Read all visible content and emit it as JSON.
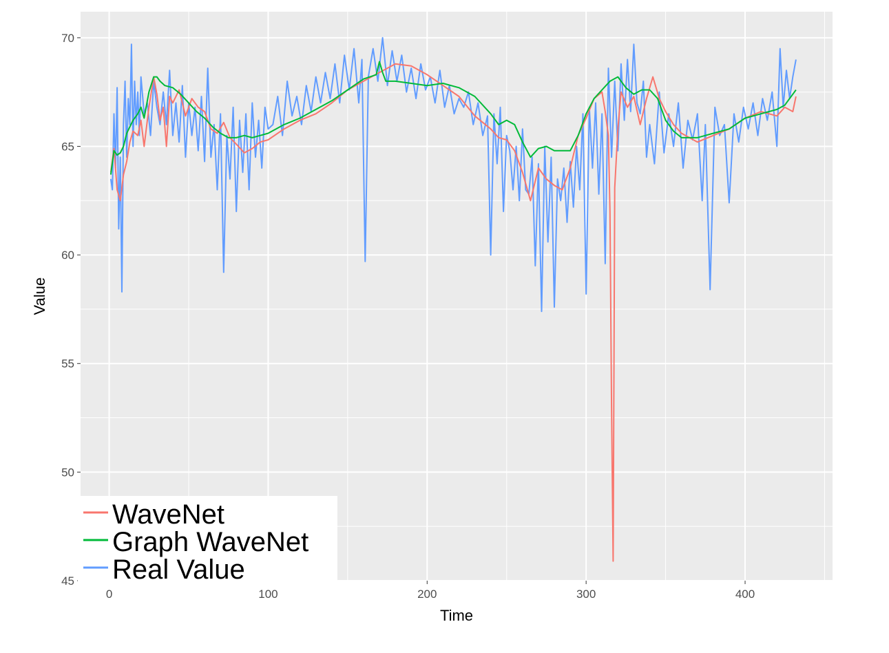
{
  "chart_data": {
    "type": "line",
    "xlabel": "Time",
    "ylabel": "Value",
    "xlim": [
      -18,
      455
    ],
    "ylim": [
      45,
      71.2
    ],
    "x_ticks": [
      0,
      100,
      200,
      300,
      400
    ],
    "y_ticks": [
      45,
      50,
      55,
      60,
      65,
      70
    ],
    "grid": true,
    "legend_position": "bottom-left",
    "colors": {
      "panel": "#ebebeb",
      "grid": "#ffffff",
      "wavenet": "#f8766d",
      "graph_wavenet": "#00ba38",
      "real_value": "#619cff"
    },
    "series": [
      {
        "name": "WaveNet",
        "color": "#f8766d",
        "x": [
          1,
          3,
          5,
          7,
          9,
          11,
          13,
          15,
          18,
          20,
          22,
          25,
          28,
          30,
          32,
          34,
          36,
          38,
          40,
          44,
          48,
          52,
          56,
          60,
          64,
          68,
          72,
          76,
          80,
          85,
          90,
          95,
          100,
          110,
          120,
          130,
          140,
          150,
          160,
          170,
          180,
          190,
          200,
          210,
          220,
          230,
          240,
          245,
          250,
          255,
          260,
          265,
          270,
          275,
          280,
          285,
          290,
          295,
          300,
          305,
          310,
          312,
          314,
          315,
          316,
          317,
          318,
          320,
          322,
          326,
          330,
          334,
          338,
          342,
          346,
          350,
          355,
          360,
          370,
          380,
          390,
          400,
          410,
          420,
          425,
          430,
          432
        ],
        "values": [
          63.8,
          64.9,
          63.0,
          62.5,
          63.7,
          64.3,
          65.2,
          65.7,
          65.5,
          66.2,
          65.0,
          66.8,
          68.2,
          67.4,
          66.2,
          66.8,
          65.0,
          67.3,
          67.0,
          67.6,
          66.4,
          67.2,
          66.8,
          66.6,
          65.8,
          65.6,
          66.1,
          65.4,
          65.1,
          64.7,
          64.9,
          65.2,
          65.3,
          65.8,
          66.2,
          66.5,
          67.0,
          67.6,
          68.0,
          68.4,
          68.8,
          68.7,
          68.3,
          67.8,
          67.3,
          66.4,
          65.8,
          65.4,
          65.3,
          64.8,
          63.8,
          62.5,
          64.0,
          63.5,
          63.2,
          63.0,
          64.0,
          65.5,
          66.3,
          67.2,
          67.5,
          66.6,
          65.5,
          62.0,
          53.0,
          45.9,
          63.1,
          65.8,
          67.5,
          66.8,
          67.3,
          66.0,
          67.2,
          68.2,
          67.2,
          66.6,
          66.0,
          65.6,
          65.2,
          65.5,
          65.8,
          66.3,
          66.6,
          66.4,
          66.8,
          66.6,
          67.3
        ]
      },
      {
        "name": "Graph WaveNet",
        "color": "#00ba38",
        "x": [
          1,
          3,
          5,
          7,
          9,
          11,
          13,
          15,
          18,
          20,
          22,
          25,
          28,
          30,
          32,
          35,
          40,
          45,
          50,
          55,
          60,
          65,
          70,
          75,
          80,
          85,
          90,
          95,
          100,
          110,
          120,
          130,
          140,
          150,
          160,
          168,
          170,
          172,
          174,
          180,
          190,
          200,
          210,
          220,
          230,
          240,
          245,
          250,
          255,
          260,
          265,
          270,
          275,
          280,
          285,
          290,
          295,
          300,
          305,
          310,
          315,
          320,
          325,
          330,
          335,
          340,
          345,
          350,
          355,
          360,
          370,
          380,
          390,
          400,
          410,
          420,
          425,
          430,
          432
        ],
        "values": [
          63.7,
          64.8,
          64.6,
          64.7,
          65.0,
          65.6,
          65.9,
          66.2,
          66.5,
          66.8,
          66.3,
          67.5,
          68.2,
          68.2,
          68.0,
          67.8,
          67.7,
          67.4,
          67.0,
          66.6,
          66.3,
          65.9,
          65.6,
          65.4,
          65.4,
          65.5,
          65.4,
          65.5,
          65.6,
          66.0,
          66.3,
          66.7,
          67.1,
          67.6,
          68.1,
          68.3,
          68.9,
          68.4,
          68.0,
          68.0,
          67.9,
          67.8,
          67.9,
          67.7,
          67.3,
          66.5,
          66.0,
          66.2,
          66.0,
          65.2,
          64.5,
          64.9,
          65.0,
          64.8,
          64.8,
          64.8,
          65.5,
          66.5,
          67.2,
          67.6,
          68.0,
          68.2,
          67.7,
          67.4,
          67.6,
          67.6,
          67.2,
          66.2,
          65.7,
          65.4,
          65.4,
          65.6,
          65.8,
          66.3,
          66.5,
          66.7,
          66.9,
          67.4,
          67.6
        ]
      },
      {
        "name": "Real Value",
        "color": "#619cff",
        "x": [
          1,
          2,
          3,
          4,
          5,
          6,
          7,
          8,
          9,
          10,
          11,
          12,
          13,
          14,
          15,
          16,
          17,
          18,
          19,
          20,
          22,
          24,
          26,
          28,
          30,
          32,
          34,
          36,
          38,
          40,
          42,
          44,
          46,
          48,
          50,
          52,
          54,
          56,
          58,
          60,
          62,
          64,
          66,
          68,
          70,
          72,
          74,
          76,
          78,
          80,
          82,
          84,
          86,
          88,
          90,
          92,
          94,
          96,
          98,
          100,
          103,
          106,
          109,
          112,
          115,
          118,
          121,
          124,
          127,
          130,
          133,
          136,
          139,
          142,
          145,
          148,
          151,
          154,
          157,
          159,
          161,
          163,
          166,
          169,
          172,
          175,
          178,
          181,
          184,
          187,
          190,
          193,
          196,
          199,
          202,
          205,
          208,
          211,
          214,
          217,
          220,
          223,
          226,
          229,
          232,
          235,
          238,
          240,
          242,
          244,
          246,
          248,
          250,
          252,
          254,
          256,
          258,
          260,
          262,
          264,
          266,
          268,
          270,
          272,
          274,
          276,
          278,
          280,
          282,
          284,
          286,
          288,
          290,
          292,
          294,
          296,
          298,
          300,
          302,
          304,
          306,
          308,
          310,
          312,
          314,
          316,
          318,
          320,
          322,
          324,
          326,
          328,
          330,
          332,
          334,
          336,
          338,
          340,
          343,
          346,
          349,
          352,
          355,
          358,
          361,
          364,
          367,
          370,
          373,
          375,
          378,
          381,
          384,
          387,
          390,
          393,
          396,
          399,
          402,
          405,
          408,
          411,
          414,
          417,
          420,
          422,
          424,
          426,
          428,
          430,
          432
        ],
        "values": [
          63.5,
          63.0,
          66.5,
          64.0,
          67.7,
          61.2,
          64.5,
          58.3,
          66.0,
          68.0,
          64.5,
          67.2,
          66.0,
          69.7,
          65.0,
          68.0,
          66.0,
          67.5,
          65.5,
          68.2,
          66.5,
          67.0,
          65.5,
          68.0,
          66.8,
          66.0,
          67.5,
          66.0,
          68.5,
          65.5,
          67.0,
          65.2,
          67.8,
          64.5,
          67.0,
          65.5,
          66.8,
          64.8,
          67.3,
          64.3,
          68.6,
          64.5,
          66.0,
          63.0,
          66.5,
          59.2,
          65.5,
          63.5,
          66.8,
          62.0,
          66.2,
          63.8,
          66.5,
          63.0,
          67.0,
          64.5,
          66.2,
          64.0,
          66.8,
          65.8,
          66.0,
          67.3,
          65.5,
          68.0,
          66.4,
          67.3,
          66.0,
          67.8,
          66.6,
          68.2,
          67.0,
          68.4,
          67.2,
          68.8,
          67.0,
          69.2,
          67.6,
          69.5,
          67.0,
          69.0,
          59.7,
          68.2,
          69.5,
          68.0,
          70.0,
          67.8,
          69.4,
          68.0,
          69.2,
          67.5,
          68.6,
          67.2,
          68.8,
          67.6,
          68.2,
          67.0,
          68.5,
          66.8,
          67.8,
          66.5,
          67.2,
          66.8,
          67.5,
          66.0,
          67.0,
          65.5,
          66.4,
          60.0,
          66.5,
          64.2,
          66.8,
          62.0,
          65.5,
          64.8,
          63.0,
          65.0,
          62.5,
          65.8,
          63.0,
          62.8,
          64.5,
          59.5,
          64.2,
          57.4,
          65.0,
          60.6,
          64.5,
          57.6,
          63.5,
          62.5,
          64.0,
          61.5,
          64.3,
          62.2,
          65.0,
          63.0,
          66.5,
          58.2,
          66.8,
          64.0,
          67.0,
          62.8,
          66.5,
          59.6,
          68.6,
          64.5,
          68.0,
          64.8,
          68.8,
          66.2,
          69.0,
          66.6,
          69.7,
          67.0,
          66.5,
          68.0,
          64.5,
          66.0,
          64.2,
          67.5,
          64.7,
          66.5,
          65.0,
          67.0,
          64.0,
          66.2,
          65.3,
          66.5,
          62.5,
          66.0,
          58.4,
          66.8,
          65.5,
          66.0,
          62.4,
          66.5,
          65.2,
          66.8,
          65.8,
          67.0,
          65.5,
          67.2,
          66.2,
          67.5,
          65.0,
          69.5,
          66.8,
          68.5,
          67.2,
          68.2,
          69.0
        ]
      }
    ]
  }
}
